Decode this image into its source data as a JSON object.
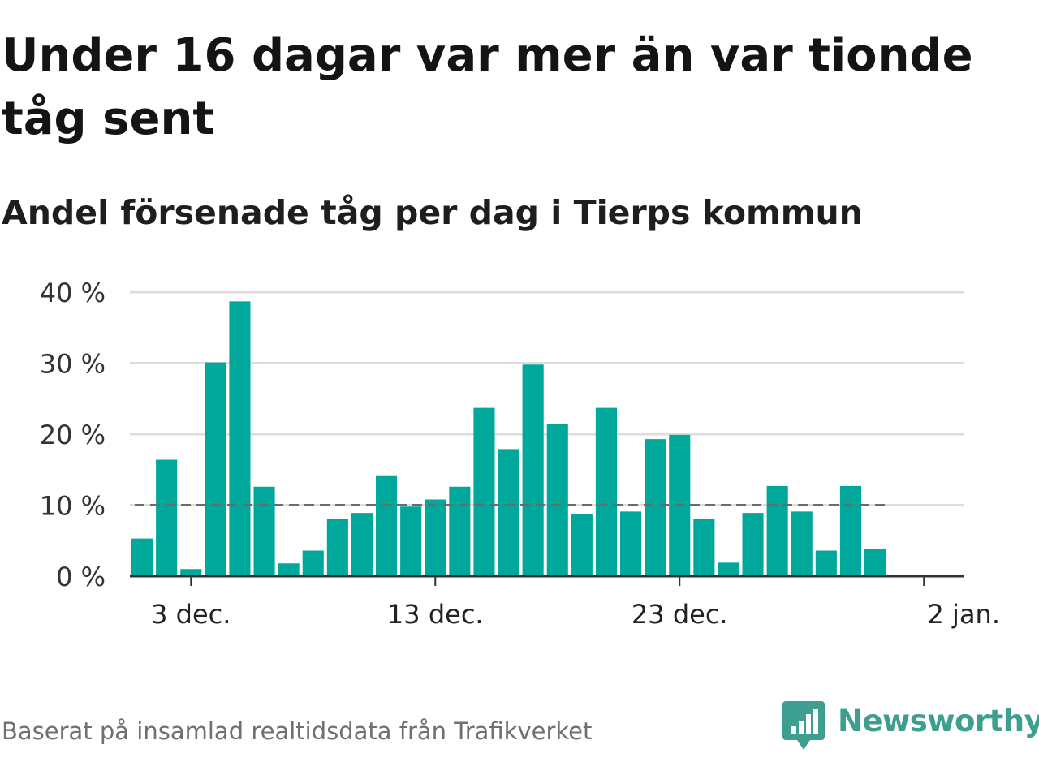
{
  "title": "Under 16 dagar var mer än var tionde tåg sent",
  "subtitle": "Andel försenade tåg per dag i Tierps kommun",
  "source": "Baserat på insamlad realtidsdata från Trafikverket",
  "brand": {
    "name": "Newsworthy",
    "icon": "newsworthy-logo-icon",
    "color": "#3e9e8f"
  },
  "colors": {
    "bar": "#00a89b",
    "reference_line": "#6b6b6b",
    "grid": "#dddddd",
    "axis": "#333333"
  },
  "chart_data": {
    "type": "bar",
    "x": [
      "1 dec.",
      "2 dec.",
      "3 dec.",
      "4 dec.",
      "5 dec.",
      "6 dec.",
      "7 dec.",
      "8 dec.",
      "9 dec.",
      "10 dec.",
      "11 dec.",
      "12 dec.",
      "13 dec.",
      "14 dec.",
      "15 dec.",
      "16 dec.",
      "17 dec.",
      "18 dec.",
      "19 dec.",
      "20 dec.",
      "21 dec.",
      "22 dec.",
      "23 dec.",
      "24 dec.",
      "25 dec.",
      "26 dec.",
      "27 dec.",
      "28 dec.",
      "29 dec.",
      "30 dec.",
      "31 dec."
    ],
    "values": [
      5.3,
      16.4,
      1.0,
      30.1,
      38.7,
      12.6,
      1.8,
      3.6,
      8.0,
      8.9,
      14.2,
      9.8,
      10.8,
      12.6,
      23.7,
      17.9,
      29.8,
      21.4,
      8.8,
      23.7,
      9.1,
      19.3,
      19.9,
      8.0,
      1.9,
      8.9,
      12.7,
      9.1,
      3.6,
      12.7,
      3.8
    ],
    "reference_value": 10,
    "ylim": [
      0,
      40
    ],
    "yticks": [
      0,
      10,
      20,
      30,
      40
    ],
    "ytick_labels": [
      "0 %",
      "10 %",
      "20 %",
      "30 %",
      "40 %"
    ],
    "xticks": [
      "3 dec.",
      "13 dec.",
      "23 dec.",
      "2 jan."
    ],
    "xtick_days": [
      3,
      13,
      23,
      33
    ],
    "grid": true
  }
}
